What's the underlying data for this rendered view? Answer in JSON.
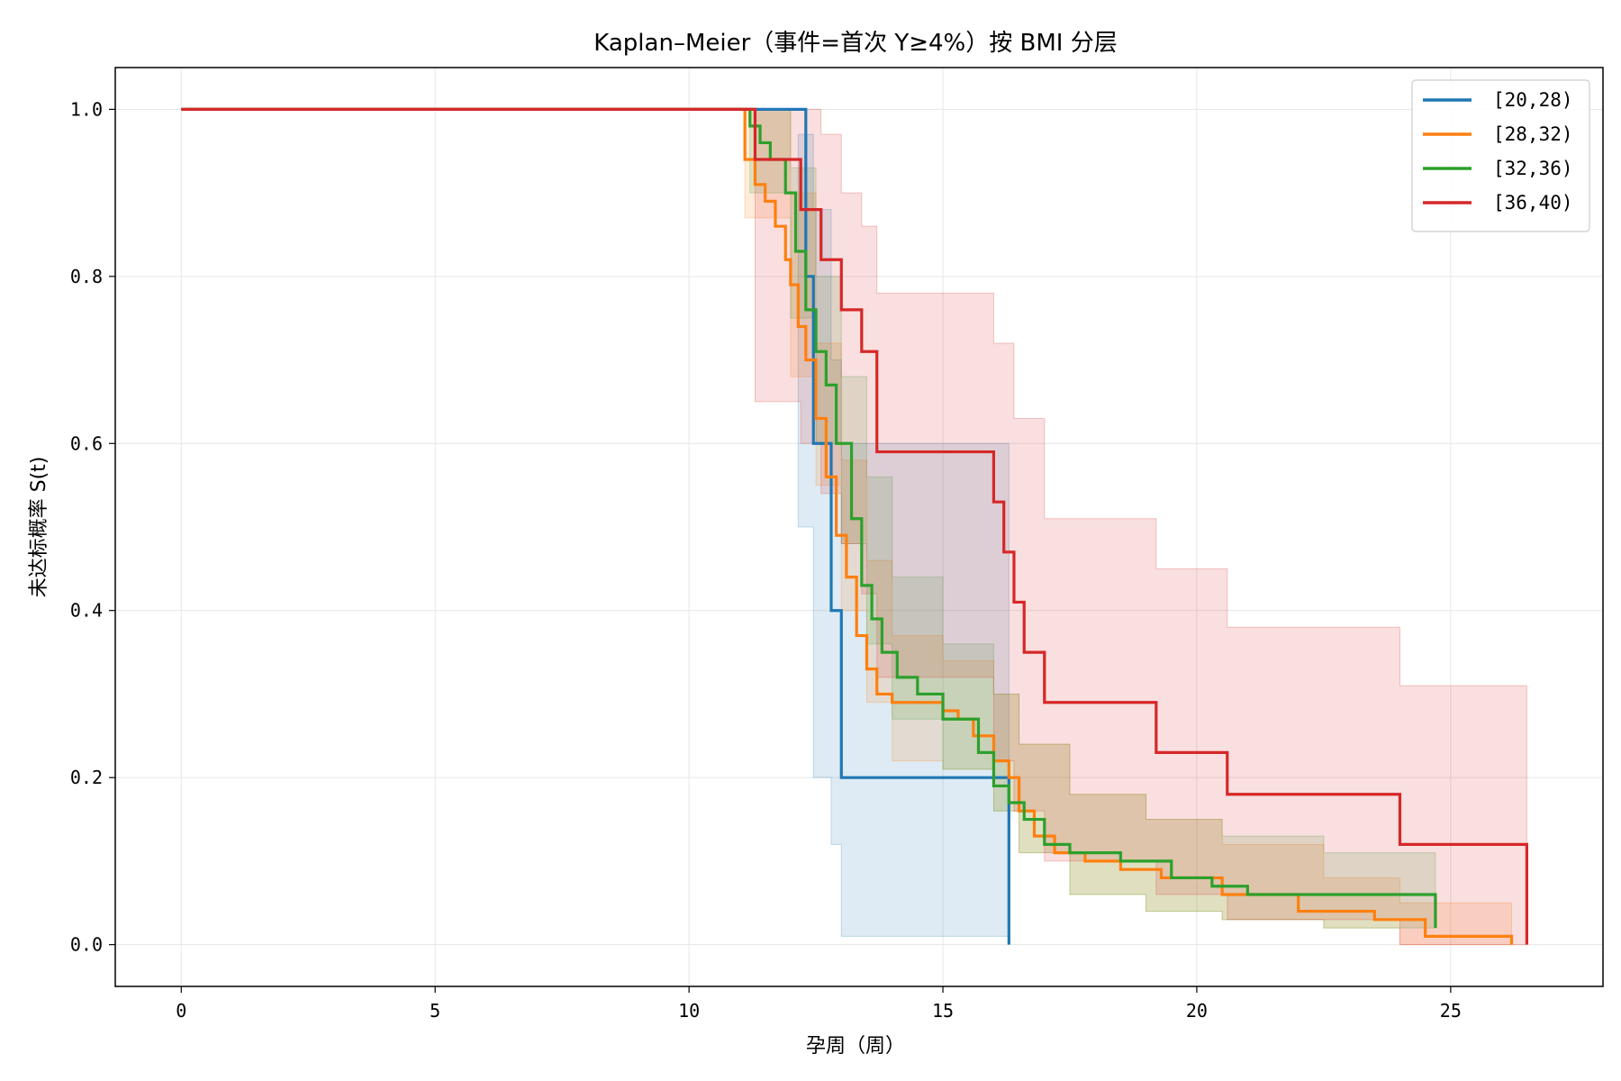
{
  "chart_data": {
    "type": "line",
    "title": "Kaplan–Meier（事件=首次 Y≥4%）按 BMI 分层",
    "xlabel": "孕周（周）",
    "ylabel": "未达标概率 S(t)",
    "xlim": [
      -1.3,
      28.0
    ],
    "ylim": [
      -0.05,
      1.05
    ],
    "xticks": [
      0,
      5,
      10,
      15,
      20,
      25
    ],
    "yticks": [
      0.0,
      0.2,
      0.4,
      0.6,
      0.8,
      1.0
    ],
    "xtick_labels": [
      "0",
      "5",
      "10",
      "15",
      "20",
      "25"
    ],
    "ytick_labels": [
      "0.0",
      "0.2",
      "0.4",
      "0.6",
      "0.8",
      "1.0"
    ],
    "grid": true,
    "legend_position": "top-right",
    "series": [
      {
        "name": "[20,28)",
        "color": "#1f77b4",
        "x": [
          0,
          12.15,
          12.3,
          12.45,
          12.55,
          12.8,
          13.0,
          16.3
        ],
        "y": [
          1.0,
          1.0,
          0.8,
          0.6,
          0.6,
          0.4,
          0.2,
          0.0
        ],
        "ci_x": [
          12.15,
          12.45,
          12.8,
          13.0,
          16.3
        ],
        "ci_upper": [
          0.97,
          0.88,
          0.7,
          0.6,
          0.2
        ],
        "ci_lower": [
          0.5,
          0.2,
          0.12,
          0.01,
          0.0
        ]
      },
      {
        "name": "[28,32)",
        "color": "#ff7f0e",
        "x": [
          0,
          11.1,
          11.3,
          11.5,
          11.7,
          11.9,
          12.0,
          12.15,
          12.3,
          12.5,
          12.7,
          12.9,
          13.1,
          13.3,
          13.5,
          13.7,
          14.0,
          14.5,
          15.0,
          15.3,
          15.6,
          16.0,
          16.3,
          16.5,
          16.8,
          17.2,
          17.8,
          18.5,
          19.3,
          20.5,
          22.0,
          23.5,
          24.5,
          26.2
        ],
        "y": [
          1.0,
          0.94,
          0.91,
          0.89,
          0.86,
          0.82,
          0.79,
          0.74,
          0.7,
          0.63,
          0.56,
          0.49,
          0.44,
          0.37,
          0.33,
          0.3,
          0.29,
          0.29,
          0.28,
          0.27,
          0.25,
          0.22,
          0.2,
          0.16,
          0.13,
          0.11,
          0.1,
          0.09,
          0.08,
          0.06,
          0.04,
          0.03,
          0.01,
          0.0
        ],
        "ci_x": [
          11.1,
          12.0,
          12.5,
          13.0,
          13.5,
          14.0,
          15.0,
          16.0,
          16.5,
          17.5,
          19.0,
          20.5,
          22.5,
          24.0,
          26.2
        ],
        "ci_upper": [
          1.0,
          0.9,
          0.72,
          0.58,
          0.46,
          0.37,
          0.34,
          0.3,
          0.24,
          0.18,
          0.15,
          0.12,
          0.08,
          0.05,
          0.05
        ],
        "ci_lower": [
          0.87,
          0.68,
          0.55,
          0.4,
          0.29,
          0.22,
          0.21,
          0.16,
          0.11,
          0.06,
          0.04,
          0.03,
          0.02,
          0.0,
          0.0
        ]
      },
      {
        "name": "[32,36)",
        "color": "#2ca02c",
        "x": [
          0,
          11.2,
          11.4,
          11.6,
          11.9,
          12.1,
          12.3,
          12.5,
          12.7,
          12.9,
          13.2,
          13.4,
          13.6,
          13.8,
          14.1,
          14.5,
          15.0,
          15.7,
          16.0,
          16.3,
          16.6,
          17.0,
          17.5,
          18.5,
          19.5,
          20.3,
          21.0,
          23.0,
          24.7
        ],
        "y": [
          1.0,
          0.98,
          0.96,
          0.94,
          0.9,
          0.83,
          0.76,
          0.71,
          0.67,
          0.6,
          0.51,
          0.43,
          0.39,
          0.35,
          0.32,
          0.3,
          0.27,
          0.23,
          0.19,
          0.17,
          0.15,
          0.12,
          0.11,
          0.1,
          0.08,
          0.07,
          0.06,
          0.06,
          0.02
        ],
        "ci_x": [
          11.2,
          12.0,
          12.5,
          13.0,
          13.5,
          14.0,
          15.0,
          16.0,
          16.5,
          17.5,
          19.0,
          20.5,
          22.5,
          24.7
        ],
        "ci_upper": [
          1.0,
          0.93,
          0.8,
          0.68,
          0.56,
          0.44,
          0.36,
          0.3,
          0.24,
          0.18,
          0.15,
          0.13,
          0.11,
          0.11
        ],
        "ci_lower": [
          0.9,
          0.75,
          0.6,
          0.48,
          0.36,
          0.27,
          0.21,
          0.16,
          0.11,
          0.06,
          0.04,
          0.03,
          0.02,
          0.02
        ]
      },
      {
        "name": "[36,40)",
        "color": "#d62728",
        "x": [
          0,
          11.3,
          12.2,
          12.6,
          13.0,
          13.4,
          13.7,
          16.0,
          16.2,
          16.4,
          16.6,
          17.0,
          19.2,
          20.6,
          24.0,
          26.5
        ],
        "y": [
          1.0,
          0.94,
          0.88,
          0.82,
          0.76,
          0.71,
          0.59,
          0.53,
          0.47,
          0.41,
          0.35,
          0.29,
          0.23,
          0.18,
          0.12,
          0.0
        ],
        "ci_x": [
          11.3,
          12.2,
          12.6,
          13.0,
          13.4,
          13.7,
          15.0,
          16.0,
          16.4,
          17.0,
          19.2,
          20.6,
          24.0,
          26.5
        ],
        "ci_upper": [
          1.0,
          1.0,
          0.97,
          0.9,
          0.86,
          0.78,
          0.78,
          0.72,
          0.63,
          0.51,
          0.45,
          0.38,
          0.31,
          0.31
        ],
        "ci_lower": [
          0.65,
          0.6,
          0.54,
          0.48,
          0.42,
          0.32,
          0.32,
          0.22,
          0.16,
          0.1,
          0.06,
          0.03,
          0.0,
          0.0
        ]
      }
    ]
  }
}
